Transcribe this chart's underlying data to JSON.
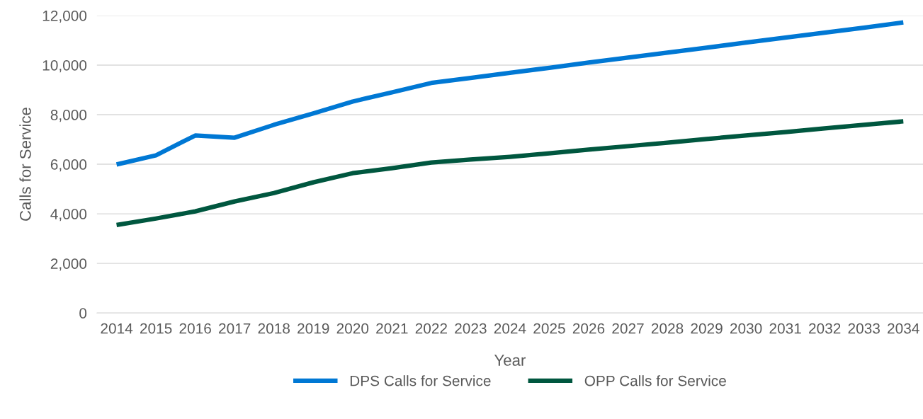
{
  "chart_data": {
    "type": "line",
    "xlabel": "Year",
    "ylabel": "Calls for Service",
    "categories": [
      "2014",
      "2015",
      "2016",
      "2017",
      "2018",
      "2019",
      "2020",
      "2021",
      "2022",
      "2023",
      "2024",
      "2025",
      "2026",
      "2027",
      "2028",
      "2029",
      "2030",
      "2031",
      "2032",
      "2033",
      "2034"
    ],
    "series": [
      {
        "name": "DPS Calls for Service",
        "color": "#0078d4",
        "values": [
          5990,
          6360,
          7160,
          7070,
          7590,
          8050,
          8530,
          8900,
          9280,
          9480,
          9690,
          9890,
          10100,
          10300,
          10500,
          10700,
          10910,
          11110,
          11310,
          11510,
          11720
        ]
      },
      {
        "name": "OPP Calls for Service",
        "color": "#00573f",
        "values": [
          3550,
          3810,
          4100,
          4500,
          4840,
          5270,
          5640,
          5840,
          6070,
          6190,
          6300,
          6440,
          6590,
          6730,
          6870,
          7020,
          7160,
          7300,
          7450,
          7590,
          7730
        ]
      }
    ],
    "ylim": [
      0,
      12000
    ],
    "yticks": [
      {
        "value": 0,
        "label": "0"
      },
      {
        "value": 2000,
        "label": "2,000"
      },
      {
        "value": 4000,
        "label": "4,000"
      },
      {
        "value": 6000,
        "label": "6,000"
      },
      {
        "value": 8000,
        "label": "8,000"
      },
      {
        "value": 10000,
        "label": "10,000"
      },
      {
        "value": 12000,
        "label": "12,000"
      }
    ],
    "grid": "y",
    "legend": "bottom",
    "marker": "none",
    "line_style": "solid"
  }
}
